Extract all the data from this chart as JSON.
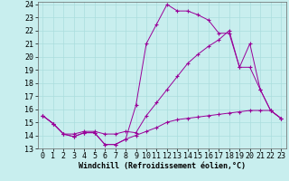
{
  "background_color": "#c8eeee",
  "grid_color": "#aadddd",
  "line_color": "#990099",
  "xlim": [
    -0.5,
    23.5
  ],
  "ylim": [
    13,
    24.2
  ],
  "xlabel": "Windchill (Refroidissement éolien,°C)",
  "xlabel_fontsize": 6.0,
  "tick_fontsize": 6.0,
  "line1_x": [
    0,
    1,
    2,
    3,
    4,
    5,
    6,
    7,
    8,
    9,
    10,
    11,
    12,
    13,
    14,
    15,
    16,
    17,
    18,
    19,
    20,
    21,
    22,
    23
  ],
  "line1_y": [
    15.5,
    14.9,
    14.1,
    13.9,
    14.2,
    14.2,
    13.3,
    13.3,
    13.7,
    16.3,
    21.0,
    22.5,
    24.0,
    23.5,
    23.5,
    23.2,
    22.8,
    21.8,
    21.8,
    19.2,
    21.0,
    17.5,
    15.9,
    15.3
  ],
  "line2_x": [
    0,
    1,
    2,
    3,
    4,
    5,
    6,
    7,
    8,
    9,
    10,
    11,
    12,
    13,
    14,
    15,
    16,
    17,
    18,
    19,
    20,
    21,
    22,
    23
  ],
  "line2_y": [
    15.5,
    14.9,
    14.1,
    13.9,
    14.2,
    14.2,
    13.3,
    13.3,
    13.7,
    14.0,
    14.3,
    14.6,
    15.0,
    15.2,
    15.3,
    15.4,
    15.5,
    15.6,
    15.7,
    15.8,
    15.9,
    15.9,
    15.9,
    15.3
  ],
  "line3_x": [
    0,
    1,
    2,
    3,
    4,
    5,
    6,
    7,
    8,
    9,
    10,
    11,
    12,
    13,
    14,
    15,
    16,
    17,
    18,
    19,
    20,
    21,
    22,
    23
  ],
  "line3_y": [
    15.5,
    14.9,
    14.1,
    14.1,
    14.3,
    14.3,
    14.1,
    14.1,
    14.3,
    14.2,
    15.5,
    16.5,
    17.5,
    18.5,
    19.5,
    20.2,
    20.8,
    21.3,
    22.0,
    19.2,
    19.2,
    17.5,
    15.9,
    15.3
  ],
  "yticks": [
    13,
    14,
    15,
    16,
    17,
    18,
    19,
    20,
    21,
    22,
    23,
    24
  ]
}
